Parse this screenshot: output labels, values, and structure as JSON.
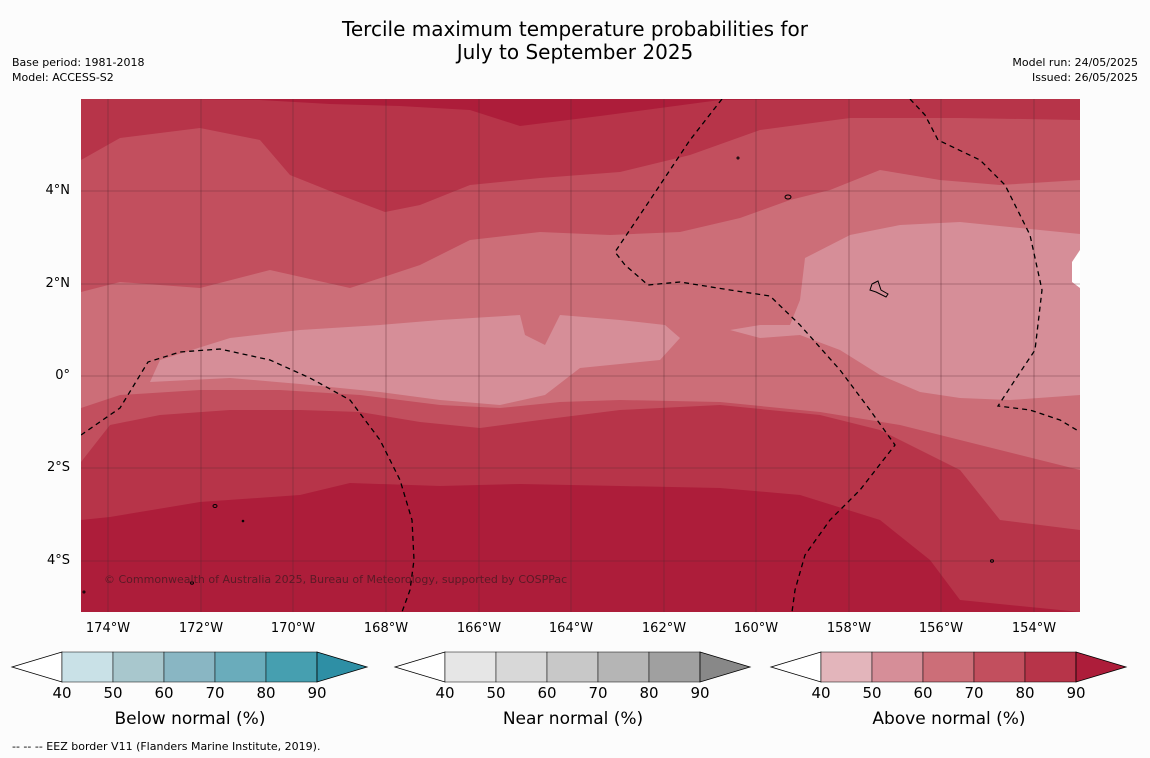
{
  "title": {
    "line1": "Tercile maximum temperature probabilities for",
    "line2": "July to September 2025"
  },
  "meta_left": {
    "base_period": "Base period: 1981-2018",
    "model": "Model: ACCESS-S2"
  },
  "meta_right": {
    "model_run": "Model run: 24/05/2025",
    "issued": "Issued: 26/05/2025"
  },
  "map": {
    "lat_labels": [
      "4°N",
      "2°N",
      "0°",
      "2°S",
      "4°S"
    ],
    "lon_labels": [
      "174°W",
      "172°W",
      "170°W",
      "168°W",
      "166°W",
      "164°W",
      "162°W",
      "160°W",
      "158°W",
      "156°W",
      "154°W"
    ],
    "copyright": "© Commonwealth of Australia 2025, Bureau of Meteorology, supported by COSPPac",
    "categories": {
      "above_normal_colors": [
        "#e3b5bb",
        "#d68e98",
        "#cc6e78",
        "#c24f5e",
        "#b73449",
        "#ad1d3a"
      ]
    }
  },
  "colorbars": [
    {
      "label": "Below normal (%)",
      "ticks": [
        "40",
        "50",
        "60",
        "70",
        "80",
        "90"
      ],
      "colors": [
        "#ffffff",
        "#c9e1e7",
        "#a8c7cd",
        "#89b6c3",
        "#6aacbb",
        "#469fb0",
        "#2e8fa5"
      ]
    },
    {
      "label": "Near normal (%)",
      "ticks": [
        "40",
        "50",
        "60",
        "70",
        "80",
        "90"
      ],
      "colors": [
        "#ffffff",
        "#e6e6e6",
        "#d8d8d8",
        "#c8c8c8",
        "#b5b5b5",
        "#a0a0a0",
        "#888888"
      ]
    },
    {
      "label": "Above normal (%)",
      "ticks": [
        "40",
        "50",
        "60",
        "70",
        "80",
        "90"
      ],
      "colors": [
        "#ffffff",
        "#e3b5bb",
        "#d68e98",
        "#cc6e78",
        "#c24f5e",
        "#b73449",
        "#ad1d3a"
      ]
    }
  ],
  "footnote": "--  --  -- EEZ border V11 (Flanders Marine Institute, 2019)."
}
